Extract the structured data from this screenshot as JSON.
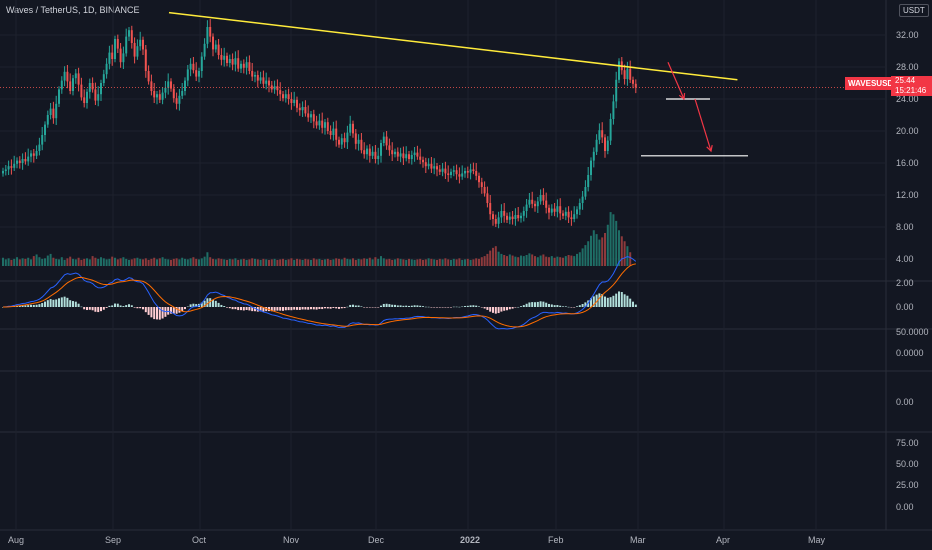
{
  "header": {
    "title": "Waves / TetherUS, 1D, BINANCE",
    "unit": "USDT"
  },
  "badges": {
    "symbol": "WAVESUSDT",
    "price": "25.44",
    "countdown": "15:21:46"
  },
  "colors": {
    "bg": "#131722",
    "up": "#26a69a",
    "down": "#ef5350",
    "trend": "#ffeb3b",
    "arrow": "#f23645",
    "level": "#ffffff",
    "macd": "#2962ff",
    "signal": "#ff6d00",
    "grid": "#1e222d"
  },
  "chart_data": {
    "type": "candlestick",
    "price_axis": {
      "ticks": [
        "32.00",
        "28.00",
        "24.00",
        "20.00",
        "16.00",
        "12.00",
        "8.00",
        "4.00"
      ],
      "range": [
        2,
        35
      ]
    },
    "time_axis": {
      "labels": [
        "Aug",
        "Sep",
        "Oct",
        "Nov",
        "Dec",
        "2022",
        "Feb",
        "Mar",
        "Apr",
        "May"
      ]
    },
    "last_price": 25.44,
    "closes": [
      15.0,
      15.2,
      15.6,
      15.4,
      15.9,
      16.3,
      16.0,
      16.5,
      16.2,
      16.8,
      17.2,
      16.9,
      17.5,
      18.3,
      19.5,
      20.8,
      22.0,
      22.8,
      21.6,
      23.4,
      25.2,
      26.3,
      27.4,
      26.2,
      25.0,
      26.6,
      27.2,
      25.8,
      24.2,
      23.5,
      24.9,
      26.0,
      25.2,
      23.8,
      24.6,
      26.0,
      27.1,
      28.4,
      29.8,
      29.0,
      31.5,
      30.3,
      28.6,
      29.7,
      31.8,
      32.6,
      31.0,
      29.3,
      30.6,
      31.4,
      30.2,
      27.5,
      26.2,
      25.0,
      24.2,
      24.6,
      23.9,
      24.8,
      25.4,
      26.2,
      25.3,
      24.1,
      23.4,
      24.4,
      25.0,
      26.3,
      27.7,
      28.4,
      27.6,
      26.8,
      27.5,
      29.3,
      30.9,
      33.0,
      31.8,
      30.2,
      30.8,
      29.5,
      28.9,
      29.4,
      28.5,
      29.0,
      28.3,
      29.1,
      27.8,
      28.4,
      27.9,
      28.6,
      27.5,
      26.8,
      27.0,
      26.3,
      26.7,
      25.9,
      26.3,
      25.7,
      25.2,
      25.6,
      25.1,
      24.6,
      24.1,
      24.6,
      24.0,
      23.5,
      23.9,
      22.9,
      22.6,
      23.0,
      22.2,
      21.7,
      22.1,
      21.2,
      20.7,
      21.3,
      20.4,
      21.1,
      20.0,
      19.5,
      20.3,
      18.9,
      18.3,
      19.1,
      18.6,
      19.8,
      20.9,
      19.7,
      18.4,
      18.9,
      17.6,
      17.1,
      17.8,
      16.9,
      17.4,
      16.5,
      16.9,
      18.5,
      19.3,
      18.2,
      17.6,
      17.1,
      17.4,
      16.8,
      17.2,
      16.6,
      17.1,
      16.5,
      17.0,
      17.3,
      16.8,
      16.4,
      16.1,
      15.6,
      15.9,
      15.3,
      15.6,
      15.2,
      14.9,
      15.3,
      14.7,
      14.5,
      14.9,
      15.1,
      14.6,
      14.3,
      14.7,
      15.0,
      14.8,
      15.2,
      15.0,
      14.4,
      13.6,
      13.0,
      12.2,
      11.0,
      9.6,
      9.0,
      8.4,
      9.2,
      10.0,
      9.4,
      8.9,
      9.3,
      9.0,
      9.5,
      9.1,
      9.4,
      10.0,
      10.8,
      11.4,
      10.9,
      10.6,
      11.2,
      12.0,
      11.3,
      10.4,
      9.8,
      10.3,
      9.9,
      10.6,
      9.7,
      9.4,
      9.9,
      9.2,
      9.0,
      9.6,
      10.2,
      11.0,
      11.8,
      13.0,
      14.5,
      16.3,
      17.4,
      18.9,
      20.1,
      19.2,
      17.5,
      18.8,
      21.5,
      23.7,
      26.4,
      28.7,
      27.6,
      26.5,
      27.8,
      26.4,
      25.9,
      25.44
    ],
    "volume_max": 10,
    "volumes": [
      1.5,
      1.2,
      1.4,
      1.1,
      1.3,
      1.6,
      1.2,
      1.4,
      1.3,
      1.5,
      1.2,
      1.8,
      2.1,
      1.6,
      1.3,
      1.4,
      1.9,
      2.2,
      1.5,
      1.3,
      1.2,
      1.6,
      1.1,
      1.4,
      1.7,
      1.3,
      1.2,
      1.5,
      1.1,
      1.3,
      1.4,
      1.2,
      1.8,
      1.5,
      1.3,
      1.6,
      1.4,
      1.2,
      1.3,
      1.7,
      1.5,
      1.2,
      1.4,
      1.6,
      1.3,
      1.1,
      1.2,
      1.4,
      1.5,
      1.3,
      1.2,
      1.4,
      1.1,
      1.3,
      1.5,
      1.2,
      1.4,
      1.6,
      1.3,
      1.2,
      1.1,
      1.3,
      1.4,
      1.2,
      1.5,
      1.3,
      1.2,
      1.4,
      1.6,
      1.3,
      1.2,
      1.4,
      1.7,
      2.5,
      1.6,
      1.3,
      1.2,
      1.4,
      1.3,
      1.2,
      1.1,
      1.3,
      1.2,
      1.4,
      1.1,
      1.2,
      1.3,
      1.1,
      1.2,
      1.4,
      1.3,
      1.2,
      1.1,
      1.3,
      1.2,
      1.1,
      1.2,
      1.3,
      1.1,
      1.2,
      1.3,
      1.1,
      1.2,
      1.4,
      1.1,
      1.3,
      1.2,
      1.1,
      1.3,
      1.2,
      1.1,
      1.4,
      1.2,
      1.3,
      1.1,
      1.2,
      1.3,
      1.1,
      1.2,
      1.4,
      1.3,
      1.2,
      1.5,
      1.3,
      1.2,
      1.4,
      1.1,
      1.3,
      1.2,
      1.4,
      1.3,
      1.5,
      1.2,
      1.6,
      1.3,
      1.8,
      1.4,
      1.2,
      1.3,
      1.1,
      1.2,
      1.4,
      1.3,
      1.2,
      1.1,
      1.3,
      1.2,
      1.1,
      1.2,
      1.3,
      1.1,
      1.2,
      1.4,
      1.3,
      1.2,
      1.1,
      1.3,
      1.2,
      1.4,
      1.2,
      1.1,
      1.3,
      1.2,
      1.4,
      1.1,
      1.2,
      1.3,
      1.1,
      1.2,
      1.4,
      1.3,
      1.6,
      1.8,
      2.2,
      2.8,
      3.3,
      3.6,
      2.6,
      2.2,
      2.0,
      1.8,
      2.1,
      1.9,
      1.7,
      1.6,
      1.9,
      1.8,
      2.0,
      2.3,
      2.1,
      1.8,
      1.6,
      1.9,
      2.1,
      1.7,
      1.6,
      1.8,
      1.5,
      1.7,
      1.6,
      1.5,
      1.8,
      2.0,
      1.9,
      1.8,
      2.2,
      2.5,
      3.2,
      3.8,
      4.5,
      5.5,
      6.5,
      5.8,
      4.8,
      5.2,
      6.0,
      7.5,
      9.8,
      9.4,
      8.2,
      6.5,
      5.4,
      4.5,
      3.6,
      2.5
    ],
    "indicators": [
      {
        "type": "macd",
        "ticks": [
          "2.00",
          "0.00"
        ]
      },
      {
        "type": "oscillator",
        "ticks": [
          "50.0000",
          "0.0000"
        ]
      },
      {
        "type": "oscillator",
        "ticks": [
          "0.00"
        ]
      },
      {
        "type": "oscillator",
        "ticks": [
          "75.00",
          "50.00",
          "25.00",
          "0.00"
        ]
      }
    ],
    "drawings": {
      "trendline": {
        "from": [
          "2021-09-29",
          34.8
        ],
        "to": [
          "2022-04-20",
          26.4
        ]
      },
      "levels": [
        24.0,
        16.9
      ],
      "arrows": [
        [
          28.6,
          24.0
        ],
        [
          24.0,
          17.5
        ]
      ]
    }
  }
}
